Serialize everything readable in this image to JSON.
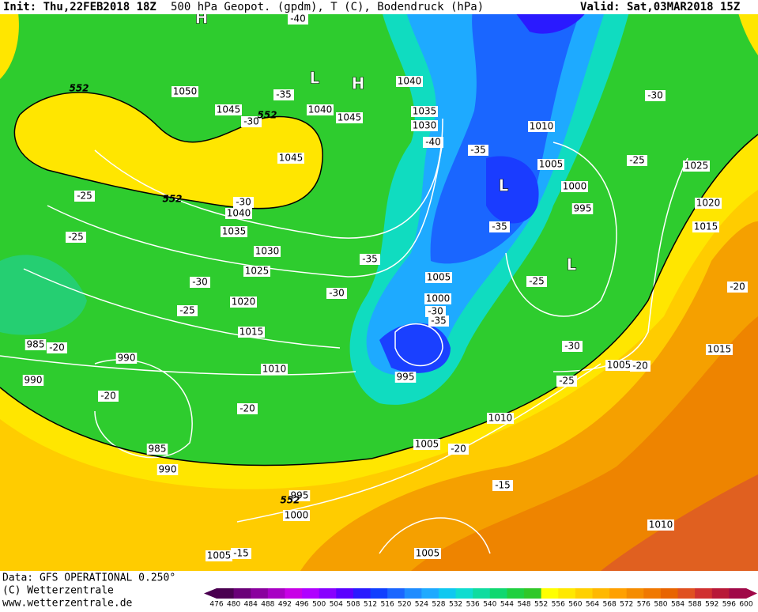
{
  "header": {
    "init": "Init: Thu,22FEB2018 18Z",
    "title": "500 hPa Geopot. (gpdm), T (C), Bodendruck (hPa)",
    "valid": "Valid: Sat,03MAR2018 15Z"
  },
  "map": {
    "isobar_labels": [
      "1050",
      "1045",
      "1040",
      "1045",
      "1045",
      "1040",
      "1035",
      "1030",
      "1025",
      "1020",
      "1015",
      "1010",
      "1040",
      "1035",
      "1030",
      "1010",
      "1005",
      "1000",
      "995",
      "1025",
      "1020",
      "1015",
      "1005",
      "1000",
      "995",
      "1005",
      "1015",
      "1010",
      "1005",
      "985",
      "990",
      "990",
      "985",
      "990",
      "995",
      "1000",
      "1005",
      "1005",
      "1010"
    ],
    "temperature_labels": [
      "-40",
      "-35",
      "-30",
      "-30",
      "-25",
      "-25",
      "-30",
      "-25",
      "-20",
      "-20",
      "-20",
      "-35",
      "-30",
      "-40",
      "-35",
      "-35",
      "-30",
      "-35",
      "-25",
      "-30",
      "-25",
      "-20",
      "-30",
      "-25",
      "-20",
      "-20",
      "-15",
      "-15"
    ],
    "contour_552_labels": [
      "552",
      "552",
      "552",
      "552"
    ],
    "pressure_centers": [
      "H",
      "L",
      "H",
      "L",
      "L"
    ]
  },
  "footer": {
    "data": "Data: GFS OPERATIONAL 0.250°",
    "copyright": "(C) Wetterzentrale",
    "url": "www.wetterzentrale.de"
  },
  "colorbar": {
    "ticks": [
      476,
      480,
      484,
      488,
      492,
      496,
      500,
      504,
      508,
      512,
      516,
      520,
      524,
      528,
      532,
      536,
      540,
      544,
      548,
      552,
      556,
      560,
      564,
      568,
      572,
      576,
      580,
      584,
      588,
      592,
      596,
      600
    ],
    "colors": [
      "#4a0050",
      "#6a0078",
      "#8a009e",
      "#a800c4",
      "#c800e6",
      "#b000ff",
      "#8800ff",
      "#5a00ff",
      "#2a1aff",
      "#1040ff",
      "#1a66ff",
      "#1e8cff",
      "#1eaaff",
      "#10c8f0",
      "#10dcd0",
      "#10dca0",
      "#10d870",
      "#20d040",
      "#30c828",
      "#ffff00",
      "#ffe800",
      "#ffd000",
      "#ffb800",
      "#ffa000",
      "#f58c00",
      "#f07800",
      "#e86400",
      "#e05020",
      "#d03030",
      "#b81838",
      "#a00848"
    ]
  }
}
